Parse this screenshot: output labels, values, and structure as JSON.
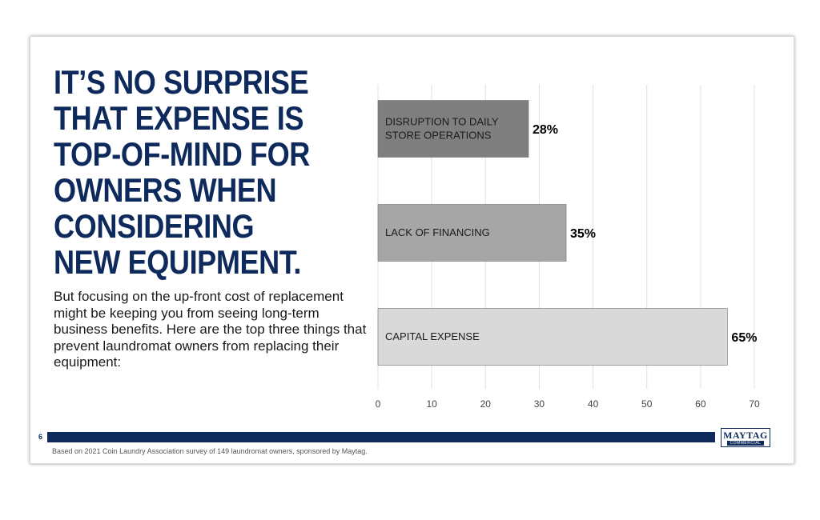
{
  "headline": {
    "lines": [
      "IT’S NO SURPRISE",
      "THAT EXPENSE IS",
      "TOP-OF-MIND FOR",
      "OWNERS WHEN",
      "CONSIDERING",
      "NEW EQUIPMENT."
    ]
  },
  "body_text": "But focusing on the up-front cost of replacement might be keeping you from seeing long-term business benefits. Here are the top three things that prevent laundromat owners from replacing their equipment:",
  "footer": {
    "page_number": "6",
    "source": "Based on 2021 Coin Laundry Association survey of 149 laundromat owners, sponsored by Maytag.",
    "logo_main": "MAYTAG",
    "logo_sub": "COMMERCIAL"
  },
  "colors": {
    "brand_navy": "#0e2a5c",
    "bar_dark": "#7f7f7f",
    "bar_medium": "#a6a6a6",
    "bar_light": "#d9d9d9"
  },
  "chart_data": {
    "type": "bar",
    "orientation": "horizontal",
    "categories": [
      [
        "DISRUPTION TO DAILY",
        "STORE OPERATIONS"
      ],
      [
        "LACK OF FINANCING"
      ],
      [
        "CAPITAL EXPENSE"
      ]
    ],
    "values": [
      28,
      35,
      65
    ],
    "value_labels": [
      "28%",
      "35%",
      "65%"
    ],
    "bar_colors": [
      "#7f7f7f",
      "#a6a6a6",
      "#d9d9d9"
    ],
    "xlim": [
      0,
      70
    ],
    "xticks": [
      0,
      10,
      20,
      30,
      40,
      50,
      60,
      70
    ],
    "grid": true
  }
}
